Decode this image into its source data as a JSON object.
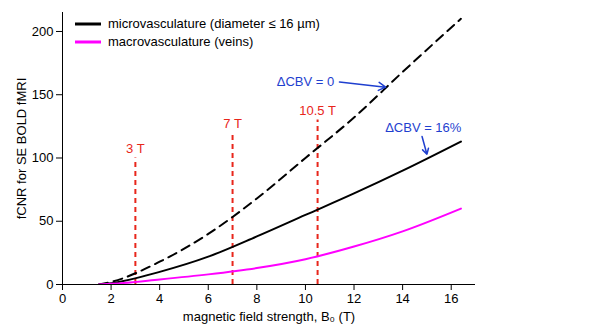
{
  "chart_data": {
    "type": "line",
    "x_label": "magnetic field strength, B₀ (T)",
    "y_label": "fCNR for SE BOLD fMRI",
    "x": [
      1.5,
      2,
      4,
      6,
      8,
      10,
      12,
      14,
      16.4
    ],
    "series": [
      {
        "name": "microvasculature (diameter ≤ 16 µm)",
        "color": "#000000",
        "line_style": "dashed",
        "label": "ΔCBV = 0",
        "label_at": [
          10.0,
          160
        ],
        "arrow": [
          [
            11.4,
            160
          ],
          [
            13.3,
            156
          ]
        ],
        "values": [
          0,
          2,
          18,
          40,
          68,
          100,
          132,
          168,
          210
        ]
      },
      {
        "name": "microvasculature (diameter ≤ 16 µm)",
        "color": "#000000",
        "line_style": "solid",
        "label": "ΔCBV = 16%",
        "label_at": [
          14.85,
          124
        ],
        "arrow": [
          [
            14.8,
            117
          ],
          [
            15.0,
            103
          ]
        ],
        "values": [
          0,
          1,
          10,
          22,
          38,
          55,
          72,
          90,
          113
        ]
      },
      {
        "name": "macrovasculature (veins)",
        "color": "#ff00ff",
        "line_style": "solid",
        "values": [
          0,
          0.5,
          4,
          8,
          13,
          20,
          30,
          42,
          60
        ]
      }
    ],
    "annotation_color": "#1f3fcf",
    "field_lines": {
      "color": "#e8261b",
      "lines": [
        {
          "x": 3,
          "top": 100,
          "label": "3 T"
        },
        {
          "x": 7,
          "top": 120,
          "label": "7 T"
        },
        {
          "x": 10.5,
          "top": 130,
          "label": "10.5 T"
        }
      ]
    },
    "xlim": [
      0,
      17
    ],
    "ylim": [
      0,
      215
    ],
    "xticks": [
      0,
      2,
      4,
      6,
      8,
      10,
      12,
      14,
      16
    ],
    "yticks": [
      0,
      50,
      100,
      150,
      200
    ],
    "grid": false,
    "legend": "top-left"
  }
}
